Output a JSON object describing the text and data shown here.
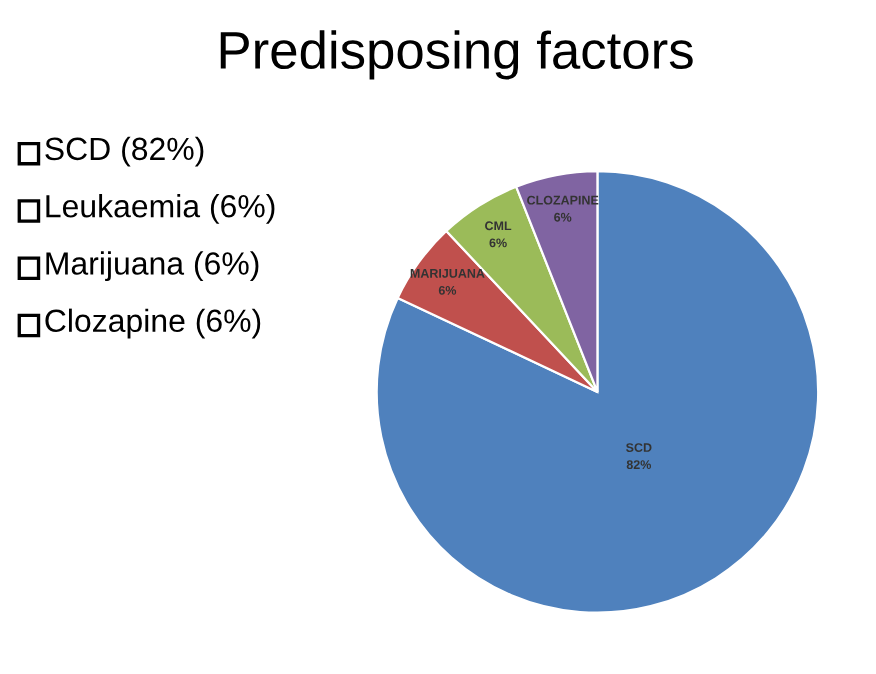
{
  "chart_data": {
    "type": "pie",
    "title": "Predisposing factors",
    "categories": [
      "SCD",
      "MARIJUANA",
      "CML",
      "CLOZAPINE"
    ],
    "values": [
      82,
      6,
      6,
      6
    ],
    "value_labels": [
      "82%",
      "6%",
      "6%",
      "6%"
    ],
    "colors": [
      "#4f81bd",
      "#c0504d",
      "#9bbb59",
      "#8064a2"
    ],
    "annotations": [
      "SCD (82%)",
      "Leukaemia (6%)",
      "Marijuana (6%)",
      "Clozapine (6%)"
    ]
  }
}
